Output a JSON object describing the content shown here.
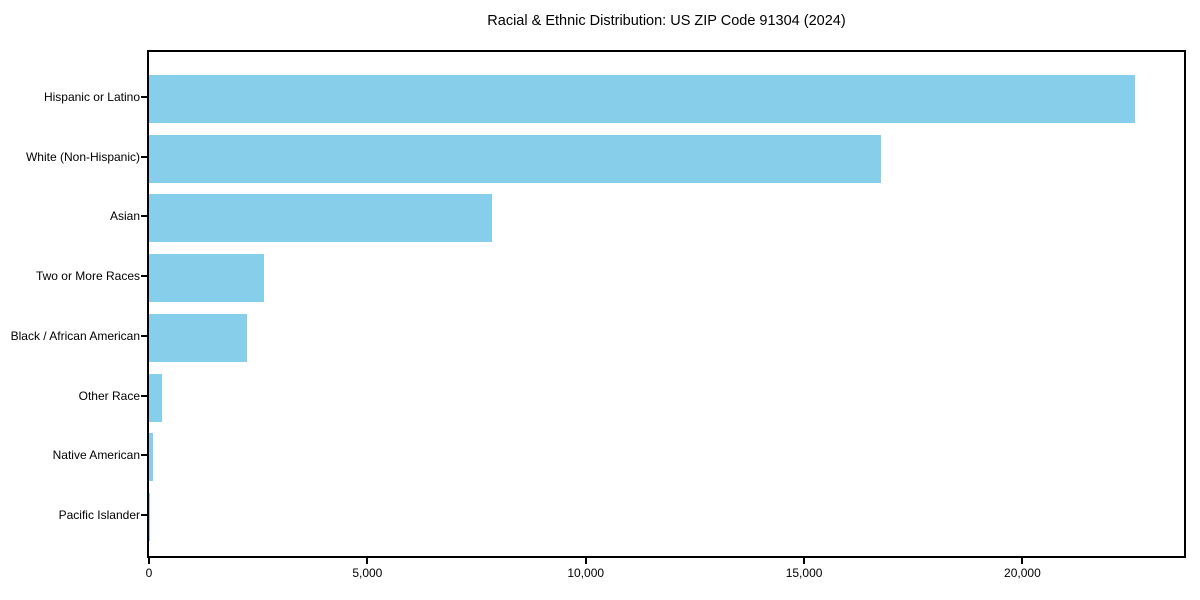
{
  "chart_data": {
    "type": "bar",
    "orientation": "horizontal",
    "title": "Racial & Ethnic Distribution: US ZIP Code 91304 (2024)",
    "categories": [
      "Hispanic or Latino",
      "White (Non-Hispanic)",
      "Asian",
      "Two or More Races",
      "Black / African American",
      "Other Race",
      "Native American",
      "Pacific Islander"
    ],
    "values": [
      22580,
      16770,
      7860,
      2630,
      2250,
      290,
      100,
      20
    ],
    "xlabel": "",
    "ylabel": "",
    "xlim": [
      0,
      23700
    ],
    "xticks": {
      "values": [
        0,
        5000,
        10000,
        15000,
        20000
      ],
      "labels": [
        "0",
        "5,000",
        "10,000",
        "15,000",
        "20,000"
      ]
    },
    "grid": false,
    "legend": false,
    "bar_color": "#87CEEB",
    "axis_color": "#000000",
    "background_color": "#FFFFFF",
    "sort_order": "descending"
  }
}
